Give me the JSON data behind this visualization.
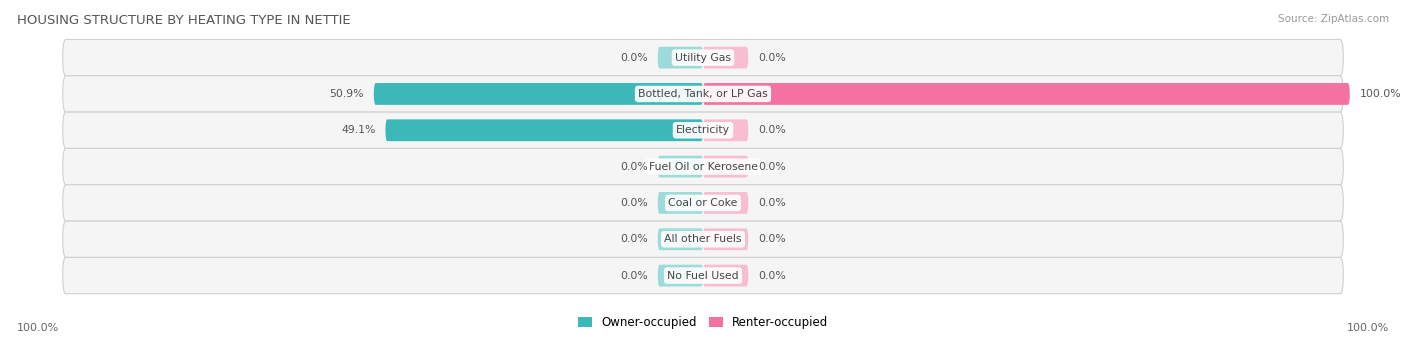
{
  "title": "HOUSING STRUCTURE BY HEATING TYPE IN NETTIE",
  "source": "Source: ZipAtlas.com",
  "categories": [
    "Utility Gas",
    "Bottled, Tank, or LP Gas",
    "Electricity",
    "Fuel Oil or Kerosene",
    "Coal or Coke",
    "All other Fuels",
    "No Fuel Used"
  ],
  "owner_values": [
    0.0,
    50.9,
    49.1,
    0.0,
    0.0,
    0.0,
    0.0
  ],
  "renter_values": [
    0.0,
    100.0,
    0.0,
    0.0,
    0.0,
    0.0,
    0.0
  ],
  "owner_color": "#3db8b8",
  "renter_color": "#f472a0",
  "owner_color_light": "#9ddada",
  "renter_color_light": "#f9bdd1",
  "row_bg_color": "#ebebeb",
  "row_bg_inner": "#f5f5f5",
  "axis_label_left": "100.0%",
  "axis_label_right": "100.0%",
  "max_value": 100.0,
  "legend_owner": "Owner-occupied",
  "legend_renter": "Renter-occupied",
  "min_stub": 7.0
}
